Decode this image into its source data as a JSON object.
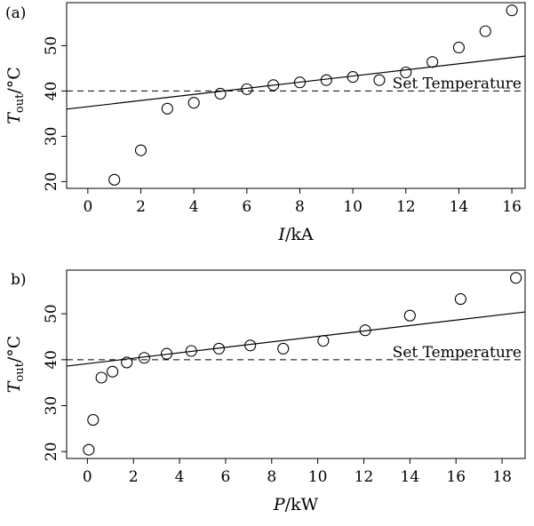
{
  "chart_data": [
    {
      "type": "scatter",
      "panel_label": "(a)",
      "xlabel": "I/kA",
      "ylabel": "T_out/°C",
      "xlim": [
        -0.8,
        16.5
      ],
      "ylim": [
        18.5,
        59.5
      ],
      "xticks": [
        0,
        2,
        4,
        6,
        8,
        10,
        12,
        14,
        16
      ],
      "yticks": [
        20,
        30,
        40,
        50
      ],
      "x": [
        1,
        2,
        3,
        4,
        5,
        6,
        7,
        8,
        9,
        10,
        11,
        12,
        13,
        14,
        15,
        16
      ],
      "y": [
        20.4,
        26.9,
        36.1,
        37.4,
        39.4,
        40.4,
        41.3,
        41.9,
        42.4,
        43.1,
        42.4,
        44.1,
        46.4,
        49.6,
        53.2,
        57.8
      ],
      "fit_line": {
        "x": [
          -0.8,
          16.5
        ],
        "y": [
          36.0,
          47.7
        ]
      },
      "reference_line": {
        "y": 40,
        "label": "Set Temperature"
      },
      "grid": false,
      "legend": "none"
    },
    {
      "type": "scatter",
      "panel_label": "b)",
      "xlabel": "P/kW",
      "ylabel": "T_out/°C",
      "xlim": [
        -0.9,
        19.0
      ],
      "ylim": [
        18.5,
        59.5
      ],
      "xticks": [
        0,
        2,
        4,
        6,
        8,
        10,
        12,
        14,
        16,
        18
      ],
      "yticks": [
        20,
        30,
        40,
        50
      ],
      "x": [
        0.06,
        0.25,
        0.61,
        1.09,
        1.71,
        2.47,
        3.44,
        4.51,
        5.71,
        7.07,
        8.5,
        10.24,
        12.06,
        14.0,
        16.2,
        18.6
      ],
      "y": [
        20.4,
        26.9,
        36.1,
        37.4,
        39.4,
        40.4,
        41.3,
        41.9,
        42.4,
        43.1,
        42.4,
        44.1,
        46.4,
        49.6,
        53.2,
        57.8
      ],
      "fit_line": {
        "x": [
          -0.9,
          19.0
        ],
        "y": [
          38.6,
          50.4
        ]
      },
      "reference_line": {
        "y": 40,
        "label": "Set Temperature"
      },
      "grid": false,
      "legend": "none"
    }
  ]
}
